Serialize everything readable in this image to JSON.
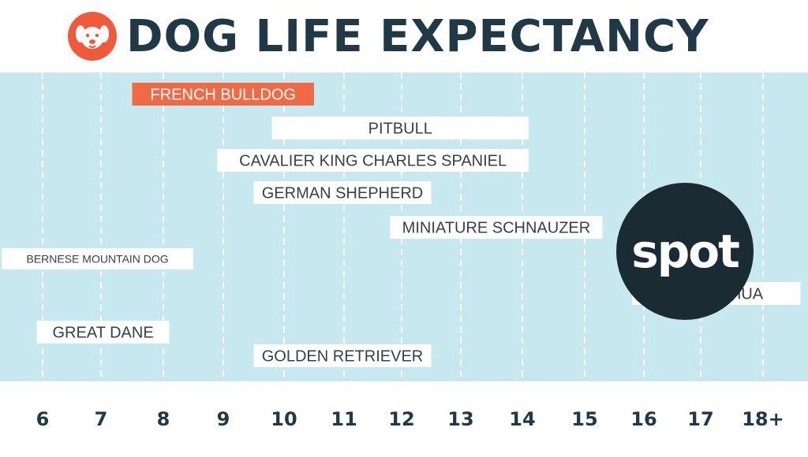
{
  "header": {
    "title": "DOG LIFE EXPECTANCY"
  },
  "brand": {
    "logo_text": "spot",
    "logo_icon": "dog-face-icon",
    "logo_color": "#f05a3a",
    "dark_color": "#1b2b33"
  },
  "colors": {
    "background": "#c6e8ee",
    "title": "#1f3a46",
    "highlight": "#f06a45",
    "label_box": "#ffffff",
    "grid": "#ffffff"
  },
  "chart_data": {
    "type": "range",
    "title": "DOG LIFE EXPECTANCY",
    "x_ticks": [
      "6",
      "7",
      "8",
      "9",
      "10",
      "11",
      "12",
      "13",
      "14",
      "15",
      "16",
      "17",
      "18+"
    ],
    "xlim": [
      6,
      18
    ],
    "grid": true,
    "series": [
      {
        "name": "FRENCH BULLDOG",
        "start": 7.5,
        "end": 10.5,
        "highlight": true
      },
      {
        "name": "PITBULL",
        "start": 9.8,
        "end": 14.1,
        "highlight": false
      },
      {
        "name": "CAVALIER KING CHARLES SPANIEL",
        "start": 8.9,
        "end": 14.1,
        "highlight": false
      },
      {
        "name": "GERMAN SHEPHERD",
        "start": 9.5,
        "end": 12.5,
        "highlight": false
      },
      {
        "name": "MINIATURE SCHNAUZER",
        "start": 11.8,
        "end": 15.3,
        "highlight": false
      },
      {
        "name": "BERNESE MOUNTAIN DOG",
        "start": 5.3,
        "end": 8.5,
        "highlight": false
      },
      {
        "name": "CHIHUAHUA",
        "start": 15.8,
        "end": 18.6,
        "highlight": false
      },
      {
        "name": "GREAT DANE",
        "start": 5.9,
        "end": 8.1,
        "highlight": false
      },
      {
        "name": "GOLDEN RETRIEVER",
        "start": 9.5,
        "end": 12.5,
        "highlight": false
      }
    ]
  }
}
